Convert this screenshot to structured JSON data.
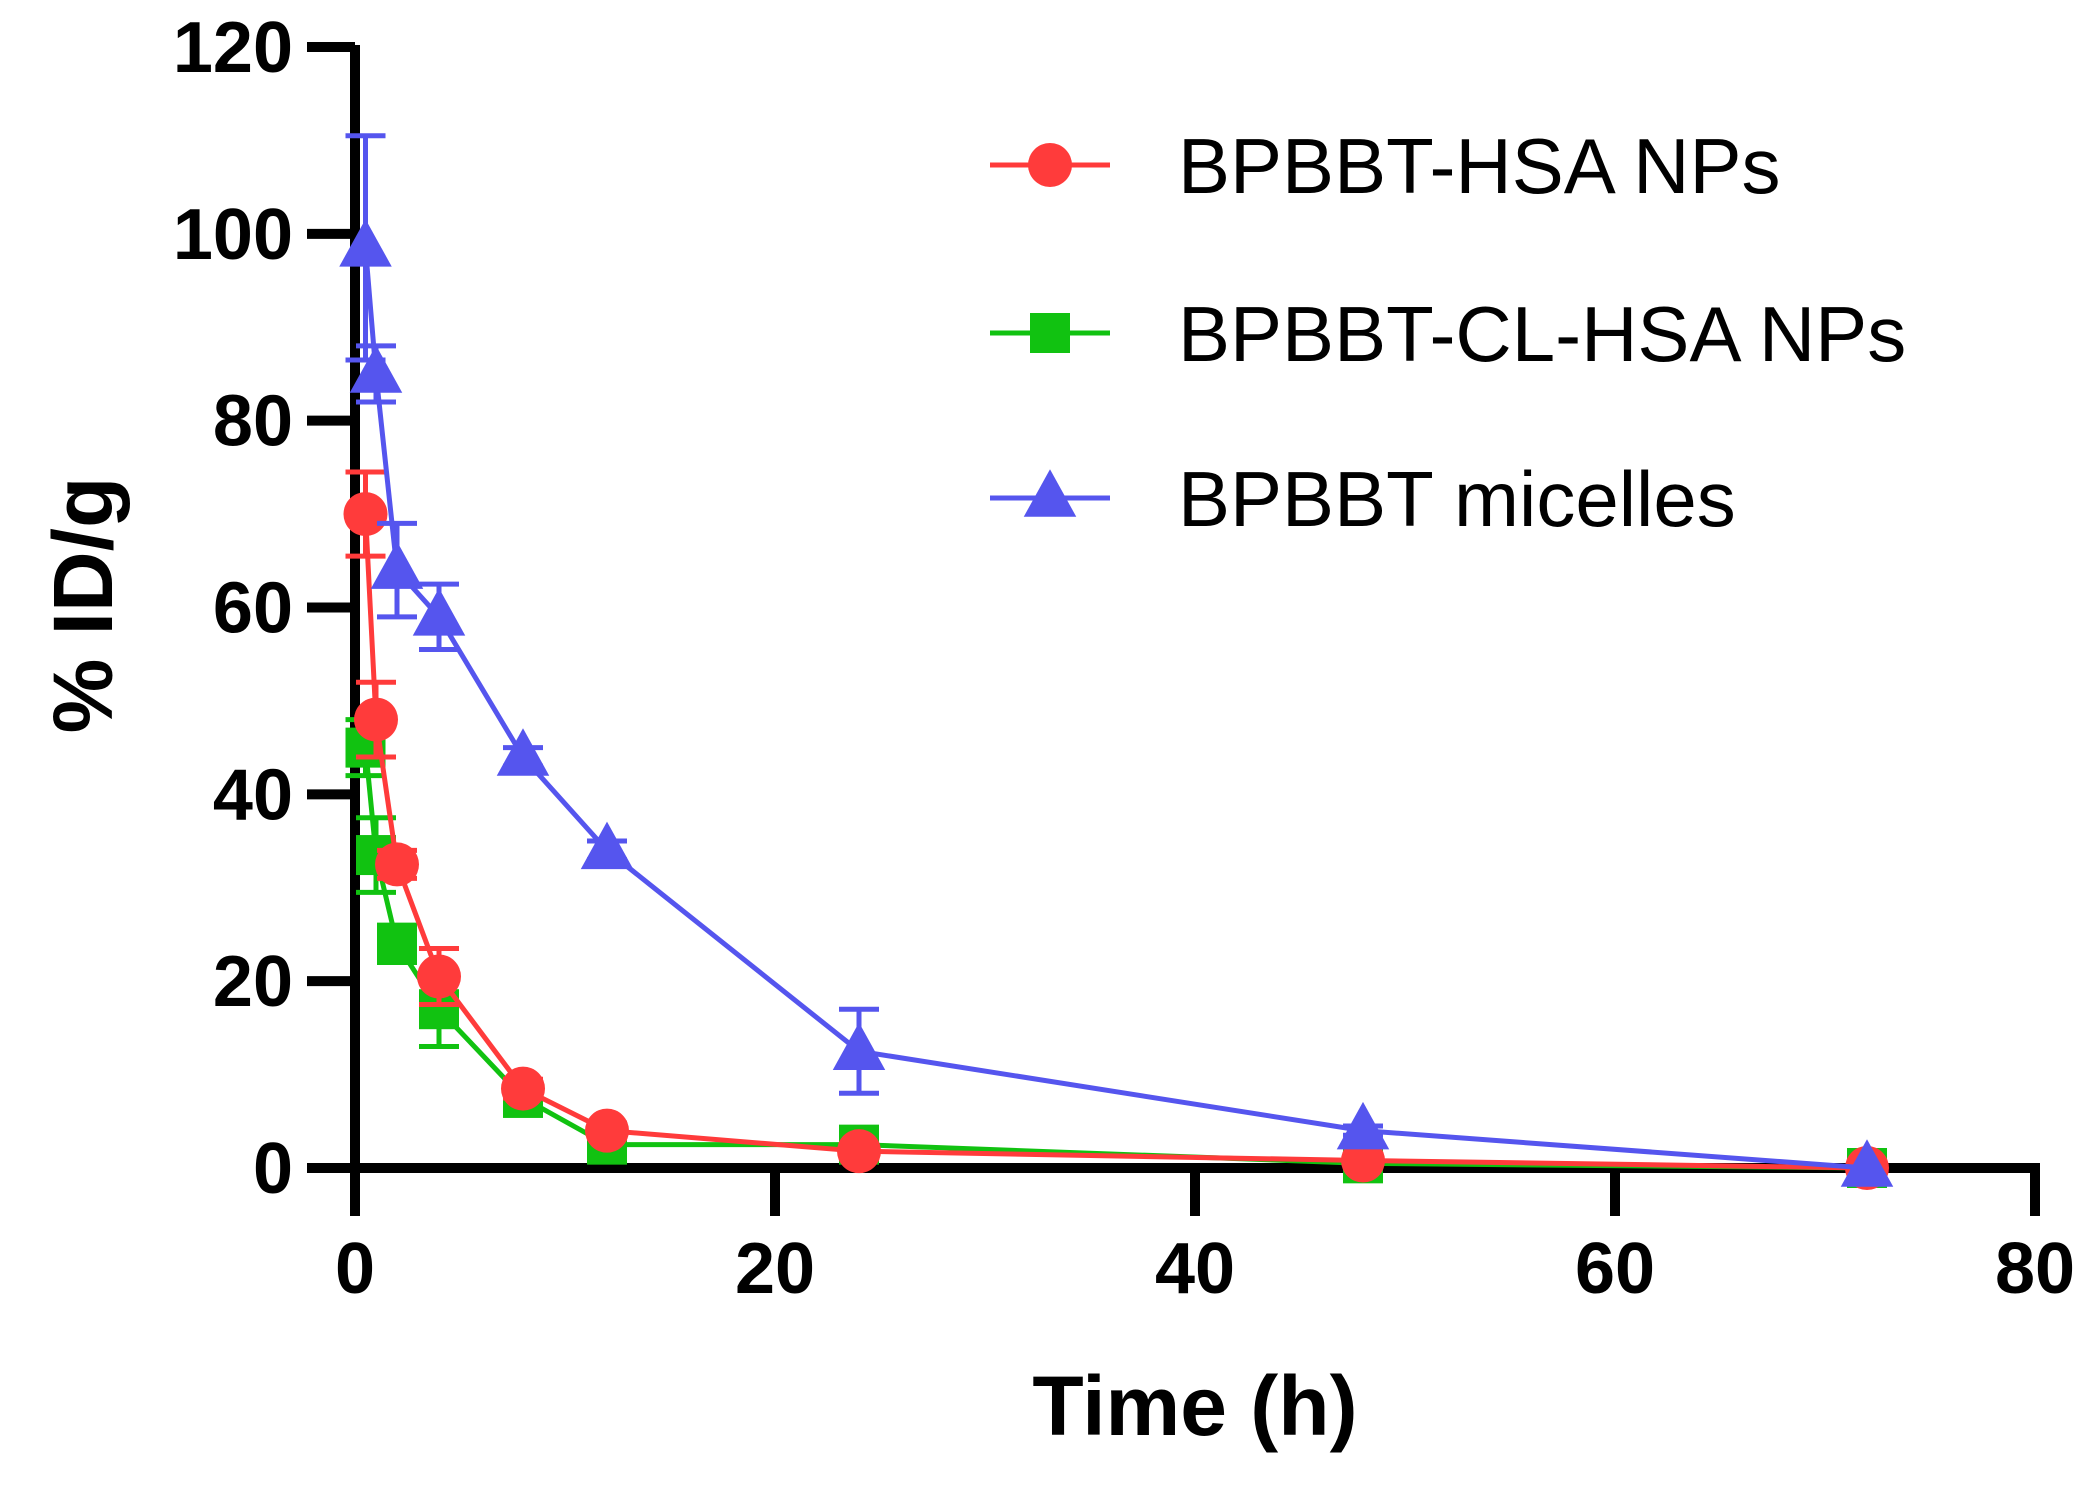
{
  "chart_data": {
    "type": "line",
    "title": "",
    "xlabel": "Time (h)",
    "ylabel": "% ID/g",
    "xlim": [
      0,
      80
    ],
    "ylim": [
      0,
      120
    ],
    "xticks": [
      0,
      20,
      40,
      60,
      80
    ],
    "yticks": [
      0,
      20,
      40,
      60,
      80,
      100,
      120
    ],
    "grid": false,
    "legend_position": "top-right",
    "series": [
      {
        "name": "BPBBT-HSA NPs",
        "color": "#ff3b3b",
        "marker": "circle",
        "x": [
          0.5,
          1,
          2,
          4,
          8,
          12,
          24,
          48,
          72
        ],
        "y": [
          70,
          48,
          32.5,
          20.5,
          8.5,
          4,
          1.8,
          0.8,
          0
        ],
        "err": [
          4.5,
          4,
          1.5,
          3,
          1,
          0.8,
          0.5,
          0.3,
          0
        ]
      },
      {
        "name": "BPBBT-CL-HSA NPs",
        "color": "#11c211",
        "marker": "square",
        "x": [
          0.5,
          1,
          2,
          4,
          8,
          12,
          24,
          48,
          72
        ],
        "y": [
          45,
          33.5,
          24,
          17,
          7.5,
          2.5,
          2.5,
          0.5,
          0
        ],
        "err": [
          3,
          4,
          2,
          4,
          1,
          0.5,
          0.5,
          0.2,
          0
        ]
      },
      {
        "name": "BPBBT micelles",
        "color": "#5555ee",
        "marker": "triangle",
        "x": [
          0.5,
          1,
          2,
          4,
          8,
          12,
          24,
          48,
          72
        ],
        "y": [
          98.5,
          85,
          64,
          59,
          44,
          34,
          12.5,
          4,
          0
        ],
        "err": [
          12,
          3,
          5,
          3.5,
          1,
          1,
          4.5,
          0.5,
          0
        ]
      }
    ]
  }
}
